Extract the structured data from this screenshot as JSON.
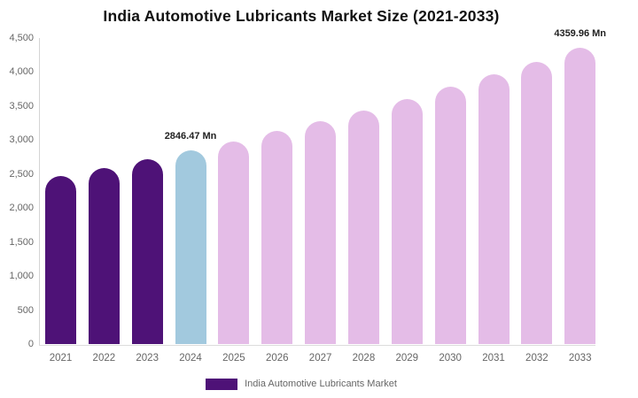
{
  "page": {
    "title": "India Automotive Lubricants Market Size (2021-2033)"
  },
  "legend": {
    "label": "India Automotive Lubricants Market"
  },
  "colors": {
    "historical_bar": "#4e1277",
    "current_year_bar": "#a2c9de",
    "forecast_bar": "#e4bce7",
    "axis_line": "#d4d4d4",
    "tick_label": "#666666",
    "annotation_text": "#222222",
    "title_text": "#111111",
    "legend_text": "#666666"
  },
  "y_axis": {
    "min": 0,
    "max": 4500,
    "tick_values": [
      4500,
      4000,
      3500,
      3000,
      2500,
      2000,
      1500,
      1000,
      500,
      0
    ],
    "tick_labels": [
      "4,500",
      "4,000",
      "3,500",
      "3,000",
      "2,500",
      "2,000",
      "1,500",
      "1,000",
      "500",
      "0"
    ]
  },
  "chart_data": {
    "type": "bar",
    "title": "India Automotive Lubricants Market Size (2021-2033)",
    "unit": "Mn",
    "categories": [
      "2021",
      "2022",
      "2023",
      "2024",
      "2025",
      "2026",
      "2027",
      "2028",
      "2029",
      "2030",
      "2031",
      "2032",
      "2033"
    ],
    "values": [
      2470,
      2595,
      2715,
      2846.47,
      2985,
      3130,
      3280,
      3440,
      3605,
      3780,
      3965,
      4155,
      4359.96
    ],
    "bar_roles": [
      "historical",
      "historical",
      "historical",
      "current",
      "forecast",
      "forecast",
      "forecast",
      "forecast",
      "forecast",
      "forecast",
      "forecast",
      "forecast",
      "forecast"
    ],
    "annotations": [
      {
        "category": "2024",
        "label": "2846.47 Mn"
      },
      {
        "category": "2033",
        "label": "4359.96 Mn"
      }
    ],
    "ylim": [
      0,
      4500
    ],
    "grid": false,
    "legend_position": "bottom"
  }
}
